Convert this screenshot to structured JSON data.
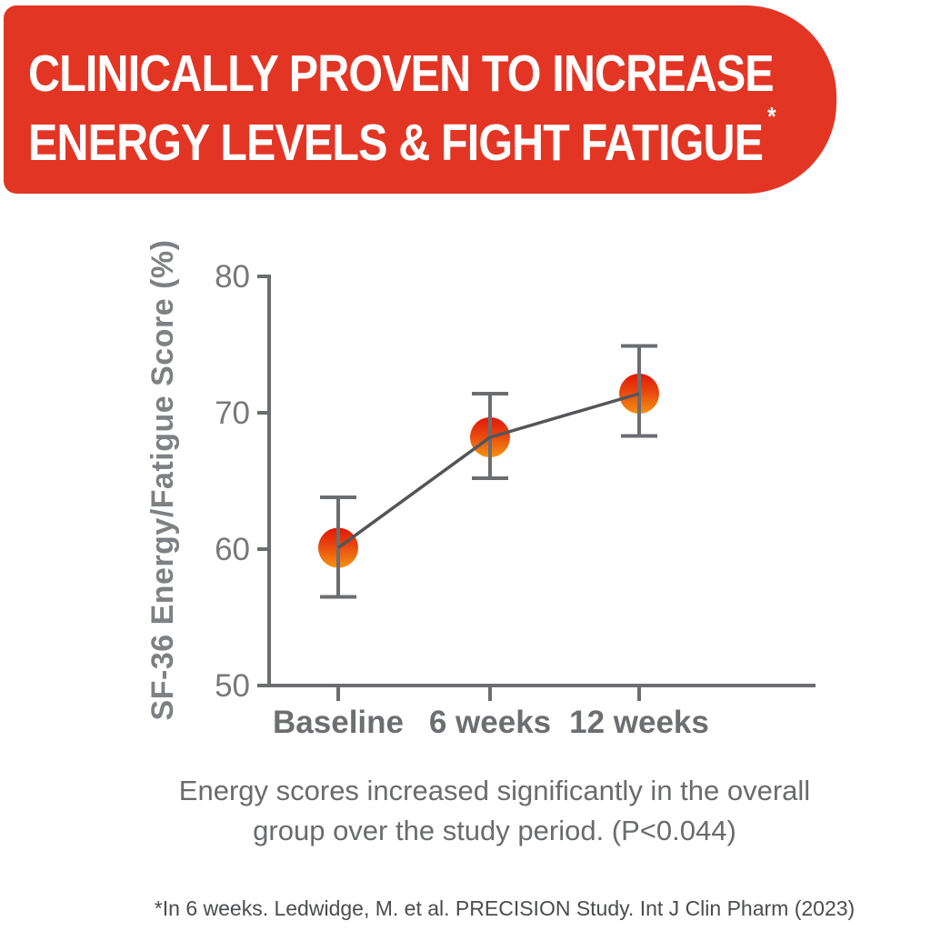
{
  "banner": {
    "line1": "CLINICALLY PROVEN TO INCREASE",
    "line2": "ENERGY LEVELS & FIGHT FATIGUE",
    "asterisk": "*",
    "bg_color": "#e33524",
    "text_color": "#ffffff"
  },
  "chart_data": {
    "type": "line",
    "title": "",
    "categories": [
      "Baseline",
      "6 weeks",
      "12 weeks"
    ],
    "series": [
      {
        "name": "SF-36 Energy/Fatigue Score",
        "values": [
          60.1,
          68.2,
          71.4
        ],
        "ci_low": [
          56.5,
          65.2,
          68.3
        ],
        "ci_high": [
          63.8,
          71.4,
          74.9
        ]
      }
    ],
    "xlabel": "",
    "ylabel": "SF-36 Energy/Fatigue Score (%)",
    "ylim": [
      50,
      80
    ],
    "yticks": [
      50,
      60,
      70,
      80
    ],
    "grid": false,
    "legend": "none",
    "marker_gradient_top": "#e21708",
    "marker_gradient_mid": "#e8470f",
    "marker_gradient_bottom": "#f6930f",
    "trend_line_color": "#545559",
    "axis_color": "#6c6d70",
    "y_tick_label_color": "#77787b",
    "x_tick_label_color": "#6d6e71",
    "axis_title_color": "#7e8084"
  },
  "caption": {
    "line1": "Energy scores increased significantly in the overall",
    "line2": "group over the study period. (P<0.044)"
  },
  "footnote": "*In 6 weeks. Ledwidge, M. et al. PRECISION Study. Int J Clin Pharm (2023)"
}
